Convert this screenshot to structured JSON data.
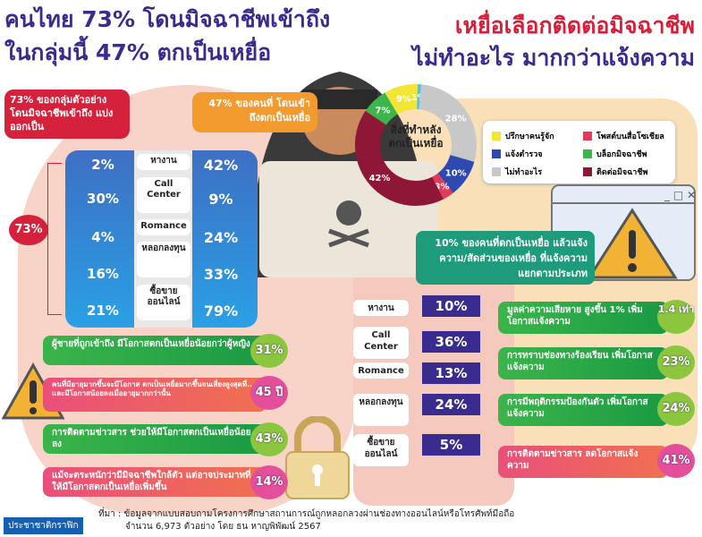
{
  "header": {
    "left_line1": "คนไทย 73% โดนมิจฉาชีพเข้าถึง",
    "left_line2": "ในกลุ่มนี้ 47% ตกเป็นเหยื่อ",
    "right_line1": "เหยื่อเลือกติดต่อมิจฉาชีพ",
    "right_line2": "ไม่ทำอะไร มากกว่าแจ้งความ"
  },
  "left_panel": {
    "callout_red": "73% ของกลุ่มตัวอย่าง โดนมิจฉาชีพเข้าถึง แบ่งออกเป็น",
    "callout_orange": "47% ของคนที่ โดนเข้าถึงตกเป็นเหยื่อ",
    "total_badge": "73%",
    "rows": [
      {
        "category": "หางาน",
        "reached": "2%",
        "victim": "42%"
      },
      {
        "category": "Call Center",
        "reached": "30%",
        "victim": "9%"
      },
      {
        "category": "Romance",
        "reached": "4%",
        "victim": "24%"
      },
      {
        "category": "หลอกลงทุน",
        "reached": "16%",
        "victim": "33%"
      },
      {
        "category": "ซื้อขายออนไลน์",
        "reached": "21%",
        "victim": "79%"
      }
    ]
  },
  "donut": {
    "center_label": "สิ่งที่ทำหลังตกเป็นเหยื่อ",
    "slices": [
      {
        "label": "ปรึกษาคนรู้จัก",
        "value": 9,
        "color": "#f2e534"
      },
      {
        "label": "",
        "value": 1,
        "color": "#5bc0e8"
      },
      {
        "label": "ไม่ทำอะไร",
        "value": 28,
        "color": "#c8c8c8"
      },
      {
        "label": "แจ้งตำรวจ",
        "value": 10,
        "color": "#2e49b0"
      },
      {
        "label": "โพสต์บนสื่อโซเชียล",
        "value": 3,
        "color": "#e23b55"
      },
      {
        "label": "ติดต่อมิจฉาชีพ",
        "value": 42,
        "color": "#8e1737"
      },
      {
        "label": "บล็อกมิจฉาชีพ",
        "value": 7,
        "color": "#3cb64a"
      }
    ]
  },
  "report_box": "10% ของคนที่ตกเป็นเหยื่อ แล้วแจ้งความ/สัดส่วนของเหยื่อ ที่แจ้งความแยกตามประเภท",
  "report_rows": [
    {
      "category": "หางาน",
      "value": "10%"
    },
    {
      "category": "Call Center",
      "value": "36%"
    },
    {
      "category": "Romance",
      "value": "13%"
    },
    {
      "category": "หลอกลงทุน",
      "value": "24%"
    },
    {
      "category": "ซื้อขายออนไลน์",
      "value": "5%"
    }
  ],
  "left_facts": [
    {
      "text": "ผู้ชายที่ถูกเข้าถึง มีโอกาสตกเป็นเหยื่อน้อยกว่าผู้หญิง",
      "value": "31%",
      "tone": "green"
    },
    {
      "text": "คนที่มีอายุมากขึ้นจะมีโอกาส ตกเป็นเหยื่อมากขึ้นจนเสี่ยงสูงสุดที่... และมีโอกาสน้อยลงเมื่ออายุมากกว่านั้น",
      "value": "45 ปี",
      "tone": "pink"
    },
    {
      "text": "การติดตามข่าวสาร ช่วยให้มีโอกาสตกเป็นเหยื่อน้อยลง",
      "value": "43%",
      "tone": "green"
    },
    {
      "text": "แม้จะตระหนักว่ามีมิจฉาชีพใกล้ตัว แต่อาจประมาทที่ให้มีโอกาสตกเป็นเหยื่อเพิ่มขึ้น",
      "value": "14%",
      "tone": "pink"
    }
  ],
  "right_facts": [
    {
      "text": "มูลค่าความเสียหาย สูงขึ้น 1% เพิ่มโอกาสแจ้งความ",
      "value": "1.4 เท่า",
      "tone": "green"
    },
    {
      "text": "การทราบช่องทางร้องเรียน เพิ่มโอกาสแจ้งความ",
      "value": "23%",
      "tone": "green"
    },
    {
      "text": "การมีพฤติกรรมป้องกันตัว เพิ่มโอกาสแจ้งความ",
      "value": "24%",
      "tone": "green"
    },
    {
      "text": "การติดตามข่าวสาร ลดโอกาสแจ้งความ",
      "value": "41%",
      "tone": "pink"
    }
  ],
  "footer": {
    "source_line1": "ที่มา : ข้อมูลจากแบบสอบถามโครงการศึกษาสถานการณ์ถูกหลอกลวงผ่านช่องทางออนไลน์หรือโทรศัพท์มือถือ",
    "source_line2": "จำนวน 6,973 ตัวอย่าง โดย ธน หาญพิพัฒน์ 2567",
    "brand": "ประชาชาติกราฟิก"
  }
}
